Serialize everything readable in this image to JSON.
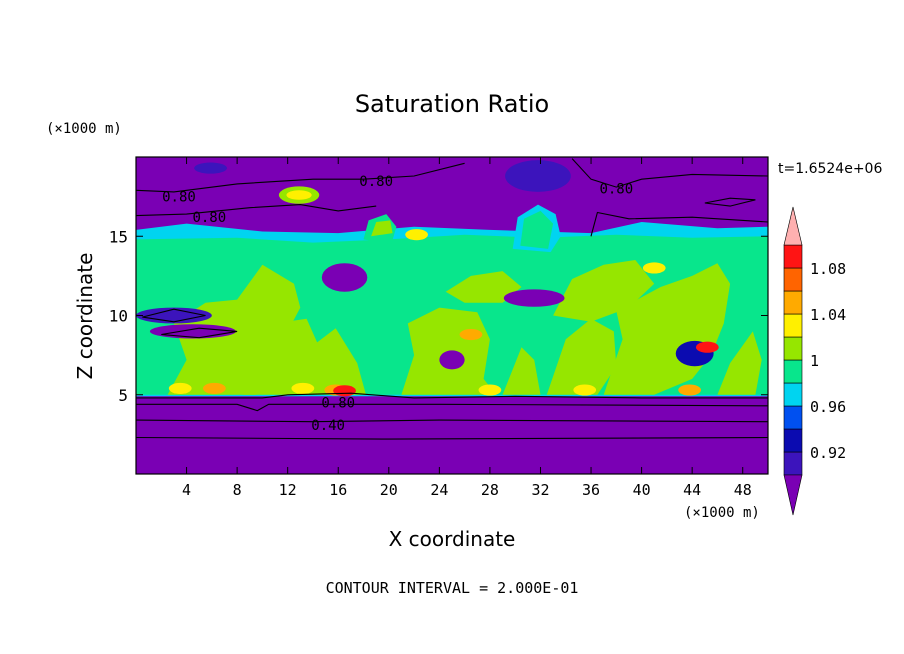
{
  "chart_data": {
    "type": "heatmap",
    "title": "Saturation Ratio",
    "xlabel": "X coordinate",
    "ylabel": "Z coordinate",
    "x_unit": "(×1000 m)",
    "y_unit": "(×1000 m)",
    "timestamp": "t=1.6524e+06",
    "footer": "CONTOUR INTERVAL = 2.000E-01",
    "xlim": [
      0,
      50
    ],
    "ylim": [
      0,
      20
    ],
    "x_ticks": [
      4,
      8,
      12,
      16,
      20,
      24,
      28,
      32,
      36,
      40,
      44,
      48
    ],
    "y_ticks": [
      5,
      10,
      15
    ],
    "colorbar": {
      "levels": [
        0.9,
        0.92,
        0.94,
        0.96,
        0.98,
        1.0,
        1.02,
        1.04,
        1.06,
        1.08,
        1.1
      ],
      "colors": [
        "#7a00b4",
        "#3c14bc",
        "#0b0bb0",
        "#0050f0",
        "#00d4f0",
        "#08e68c",
        "#96e600",
        "#fff000",
        "#ffaa00",
        "#ff6400",
        "#ff1414",
        "#ffb0b0"
      ],
      "labels": [
        {
          "value": 0.92,
          "text": "0.92"
        },
        {
          "value": 0.96,
          "text": "0.96"
        },
        {
          "value": 1.0,
          "text": "1"
        },
        {
          "value": 1.04,
          "text": "1.04"
        },
        {
          "value": 1.08,
          "text": "1.08"
        }
      ]
    },
    "contour_labels": [
      {
        "x": 19.0,
        "y": 18.5,
        "text": "0.80"
      },
      {
        "x": 3.4,
        "y": 17.5,
        "text": "0.80"
      },
      {
        "x": 5.8,
        "y": 16.2,
        "text": "0.80"
      },
      {
        "x": 38.0,
        "y": 18.0,
        "text": "0.80"
      },
      {
        "x": 16.0,
        "y": 4.5,
        "text": "0.80"
      },
      {
        "x": 15.2,
        "y": 3.1,
        "text": "0.40"
      }
    ],
    "regions": {
      "lower_dry_layer": {
        "z_range": [
          0,
          4.8
        ],
        "value": 0.4
      },
      "cloud_layer": {
        "z_range": [
          4.8,
          15.5
        ],
        "value": 1.0
      },
      "upper_dry_layer": {
        "z_range": [
          15.5,
          20
        ],
        "value": 0.8
      }
    }
  }
}
